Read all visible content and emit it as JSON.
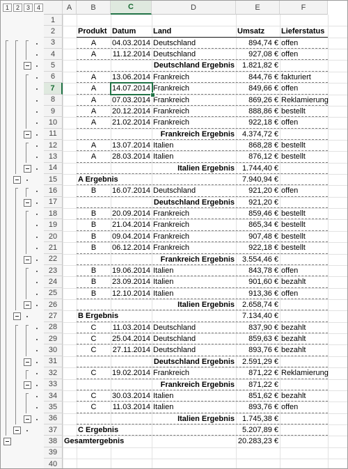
{
  "outline": {
    "level_buttons": [
      "1",
      "2",
      "3",
      "4"
    ],
    "collapse_rows": [
      5,
      11,
      14,
      15,
      17,
      22,
      25,
      26,
      27,
      31,
      33,
      36,
      37,
      38
    ]
  },
  "columns": [
    "A",
    "B",
    "C",
    "D",
    "E",
    "F"
  ],
  "row_numbers": [
    "1",
    "2",
    "3",
    "4",
    "5",
    "6",
    "7",
    "8",
    "9",
    "10",
    "11",
    "12",
    "13",
    "14",
    "15",
    "16",
    "17",
    "18",
    "19",
    "20",
    "21",
    "22",
    "23",
    "24",
    "25",
    "26",
    "27",
    "28",
    "29",
    "30",
    "31",
    "32",
    "33",
    "34",
    "35",
    "36",
    "37",
    "38",
    "39",
    "40"
  ],
  "selection": {
    "column": "C",
    "row": "7"
  },
  "table": {
    "headers": {
      "produkt": "Produkt",
      "datum": "Datum",
      "land": "Land",
      "umsatz": "Umsatz",
      "status": "Lieferstatus"
    },
    "rows": [
      {
        "r": 3,
        "kind": "detail",
        "produkt": "A",
        "datum": "04.03.2014",
        "land": "Deutschland",
        "umsatz": "894,74 €",
        "status": "offen"
      },
      {
        "r": 4,
        "kind": "detail",
        "produkt": "A",
        "datum": "11.12.2014",
        "land": "Deutschland",
        "umsatz": "927,08 €",
        "status": "offen"
      },
      {
        "r": 5,
        "kind": "sub",
        "label": "Deutschland Ergebnis",
        "umsatz": "1.821,82 €"
      },
      {
        "r": 6,
        "kind": "detail",
        "produkt": "A",
        "datum": "13.06.2014",
        "land": "Frankreich",
        "umsatz": "844,76 €",
        "status": "fakturiert"
      },
      {
        "r": 7,
        "kind": "detail",
        "produkt": "A",
        "datum": "14.07.2014",
        "land": "Frankreich",
        "umsatz": "849,66 €",
        "status": "offen"
      },
      {
        "r": 8,
        "kind": "detail",
        "produkt": "A",
        "datum": "07.03.2014",
        "land": "Frankreich",
        "umsatz": "869,26 €",
        "status": "Reklamierung"
      },
      {
        "r": 9,
        "kind": "detail",
        "produkt": "A",
        "datum": "20.12.2014",
        "land": "Frankreich",
        "umsatz": "888,86 €",
        "status": "bestellt"
      },
      {
        "r": 10,
        "kind": "detail",
        "produkt": "A",
        "datum": "21.02.2014",
        "land": "Frankreich",
        "umsatz": "922,18 €",
        "status": "offen"
      },
      {
        "r": 11,
        "kind": "sub",
        "label": "Frankreich Ergebnis",
        "umsatz": "4.374,72 €"
      },
      {
        "r": 12,
        "kind": "detail",
        "produkt": "A",
        "datum": "13.07.2014",
        "land": "Italien",
        "umsatz": "868,28 €",
        "status": "bestellt"
      },
      {
        "r": 13,
        "kind": "detail",
        "produkt": "A",
        "datum": "28.03.2014",
        "land": "Italien",
        "umsatz": "876,12 €",
        "status": "bestellt"
      },
      {
        "r": 14,
        "kind": "sub",
        "label": "Italien Ergebnis",
        "umsatz": "1.744,40 €"
      },
      {
        "r": 15,
        "kind": "prod",
        "label": "A Ergebnis",
        "umsatz": "7.940,94 €"
      },
      {
        "r": 16,
        "kind": "detail",
        "produkt": "B",
        "datum": "16.07.2014",
        "land": "Deutschland",
        "umsatz": "921,20 €",
        "status": "offen"
      },
      {
        "r": 17,
        "kind": "sub",
        "label": "Deutschland Ergebnis",
        "umsatz": "921,20 €"
      },
      {
        "r": 18,
        "kind": "detail",
        "produkt": "B",
        "datum": "20.09.2014",
        "land": "Frankreich",
        "umsatz": "859,46 €",
        "status": "bestellt"
      },
      {
        "r": 19,
        "kind": "detail",
        "produkt": "B",
        "datum": "21.04.2014",
        "land": "Frankreich",
        "umsatz": "865,34 €",
        "status": "bestellt"
      },
      {
        "r": 20,
        "kind": "detail",
        "produkt": "B",
        "datum": "09.04.2014",
        "land": "Frankreich",
        "umsatz": "907,48 €",
        "status": "bestellt"
      },
      {
        "r": 21,
        "kind": "detail",
        "produkt": "B",
        "datum": "06.12.2014",
        "land": "Frankreich",
        "umsatz": "922,18 €",
        "status": "bestellt"
      },
      {
        "r": 22,
        "kind": "sub",
        "label": "Frankreich Ergebnis",
        "umsatz": "3.554,46 €"
      },
      {
        "r": 23,
        "kind": "detail",
        "produkt": "B",
        "datum": "19.06.2014",
        "land": "Italien",
        "umsatz": "843,78 €",
        "status": "offen"
      },
      {
        "r": 24,
        "kind": "detail",
        "produkt": "B",
        "datum": "23.09.2014",
        "land": "Italien",
        "umsatz": "901,60 €",
        "status": "bezahlt"
      },
      {
        "r": 25,
        "kind": "detail",
        "produkt": "B",
        "datum": "12.10.2014",
        "land": "Italien",
        "umsatz": "913,36 €",
        "status": "offen"
      },
      {
        "r": 26,
        "kind": "sub",
        "label": "Italien Ergebnis",
        "umsatz": "2.658,74 €"
      },
      {
        "r": 27,
        "kind": "prod",
        "label": "B Ergebnis",
        "umsatz": "7.134,40 €"
      },
      {
        "r": 28,
        "kind": "detail",
        "produkt": "C",
        "datum": "11.03.2014",
        "land": "Deutschland",
        "umsatz": "837,90 €",
        "status": "bezahlt"
      },
      {
        "r": 29,
        "kind": "detail",
        "produkt": "C",
        "datum": "25.04.2014",
        "land": "Deutschland",
        "umsatz": "859,63 €",
        "status": "bezahlt"
      },
      {
        "r": 30,
        "kind": "detail",
        "produkt": "C",
        "datum": "27.11.2014",
        "land": "Deutschland",
        "umsatz": "893,76 €",
        "status": "bezahlt"
      },
      {
        "r": 31,
        "kind": "sub",
        "label": "Deutschland Ergebnis",
        "umsatz": "2.591,29 €"
      },
      {
        "r": 32,
        "kind": "detail",
        "produkt": "C",
        "datum": "19.02.2014",
        "land": "Frankreich",
        "umsatz": "871,22 €",
        "status": "Reklamierung"
      },
      {
        "r": 33,
        "kind": "sub",
        "label": "Frankreich Ergebnis",
        "umsatz": "871,22 €"
      },
      {
        "r": 34,
        "kind": "detail",
        "produkt": "C",
        "datum": "30.03.2014",
        "land": "Italien",
        "umsatz": "851,62 €",
        "status": "bezahlt"
      },
      {
        "r": 35,
        "kind": "detail",
        "produkt": "C",
        "datum": "11.03.2014",
        "land": "Italien",
        "umsatz": "893,76 €",
        "status": "offen"
      },
      {
        "r": 36,
        "kind": "sub",
        "label": "Italien Ergebnis",
        "umsatz": "1.745,38 €"
      },
      {
        "r": 37,
        "kind": "prod",
        "label": "C Ergebnis",
        "umsatz": "5.207,89 €"
      },
      {
        "r": 38,
        "kind": "grand",
        "label": "Gesamtergebnis",
        "umsatz": "20.283,23 €"
      }
    ]
  }
}
